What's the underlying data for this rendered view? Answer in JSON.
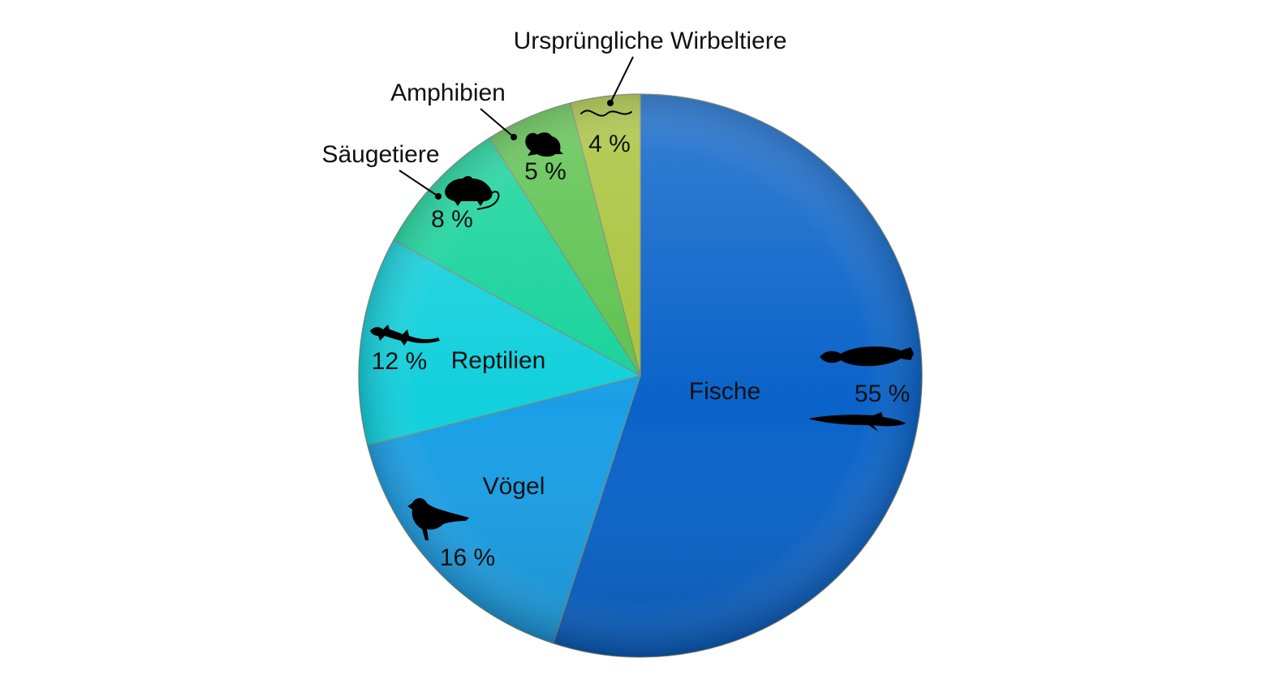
{
  "chart_data": {
    "type": "pie",
    "title": "",
    "categories": [
      "Fische",
      "Vögel",
      "Reptilien",
      "Säugetiere",
      "Amphibien",
      "Ursprüngliche Wirbeltiere"
    ],
    "values": [
      55,
      16,
      12,
      8,
      5,
      4
    ],
    "value_labels": [
      "55 %",
      "16 %",
      "12 %",
      "8 %",
      "5 %",
      "4 %"
    ],
    "colors": [
      "#0a63c9",
      "#1a9fe6",
      "#12d0dc",
      "#16d39a",
      "#5cc24e",
      "#a9c23a"
    ],
    "icons": [
      "fish-icon",
      "bird-icon",
      "lizard-icon",
      "rat-icon",
      "frog-icon",
      "lamprey-icon"
    ],
    "start": "12 o'clock",
    "direction": "clockwise",
    "legend": "none"
  }
}
